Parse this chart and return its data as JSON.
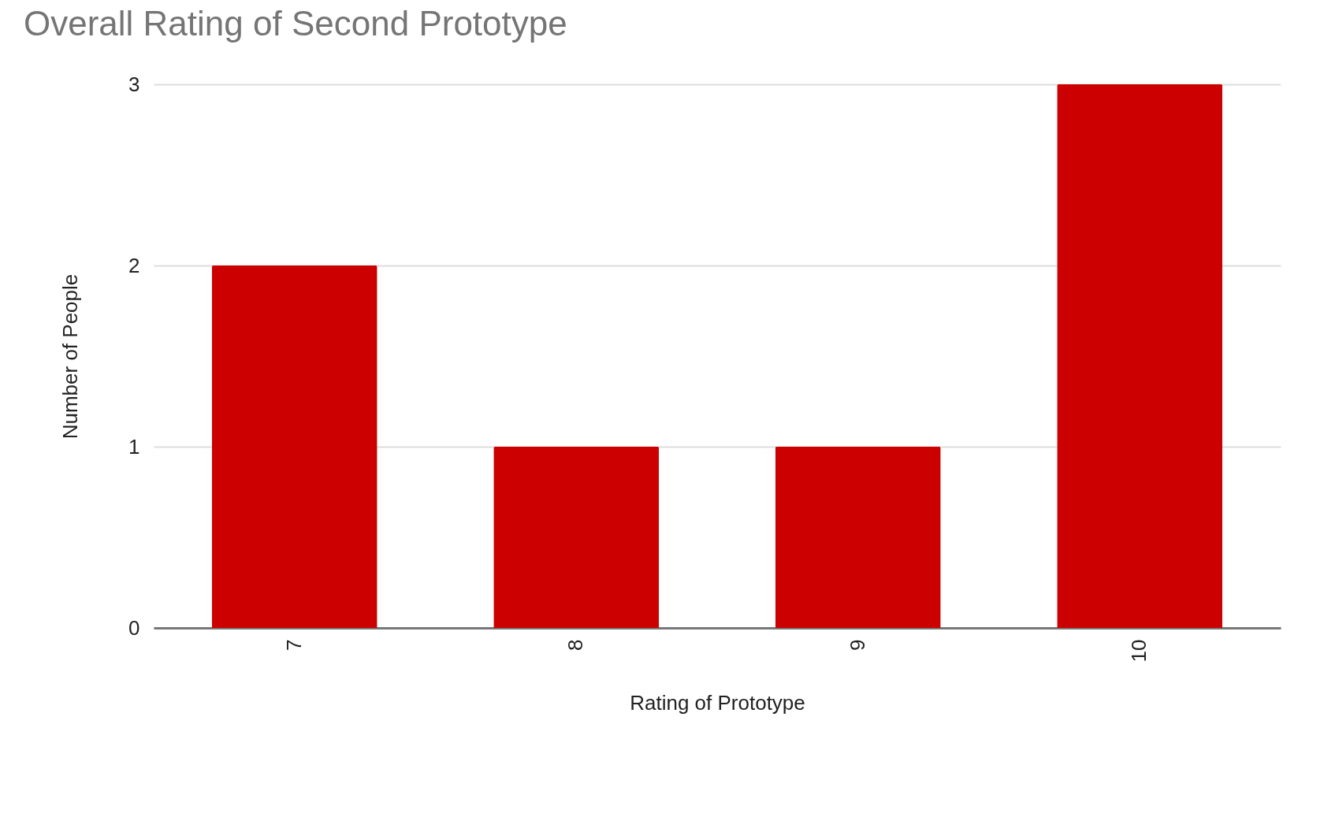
{
  "chart_data": {
    "type": "bar",
    "title": "Overall Rating of Second Prototype",
    "xlabel": "Rating of Prototype",
    "ylabel": "Number of People",
    "categories": [
      "7",
      "8",
      "9",
      "10"
    ],
    "values": [
      2,
      1,
      1,
      3
    ],
    "color": "#cc0000",
    "ylim": [
      0,
      3
    ],
    "yticks": [
      0,
      1,
      2,
      3
    ],
    "grid": "y"
  }
}
